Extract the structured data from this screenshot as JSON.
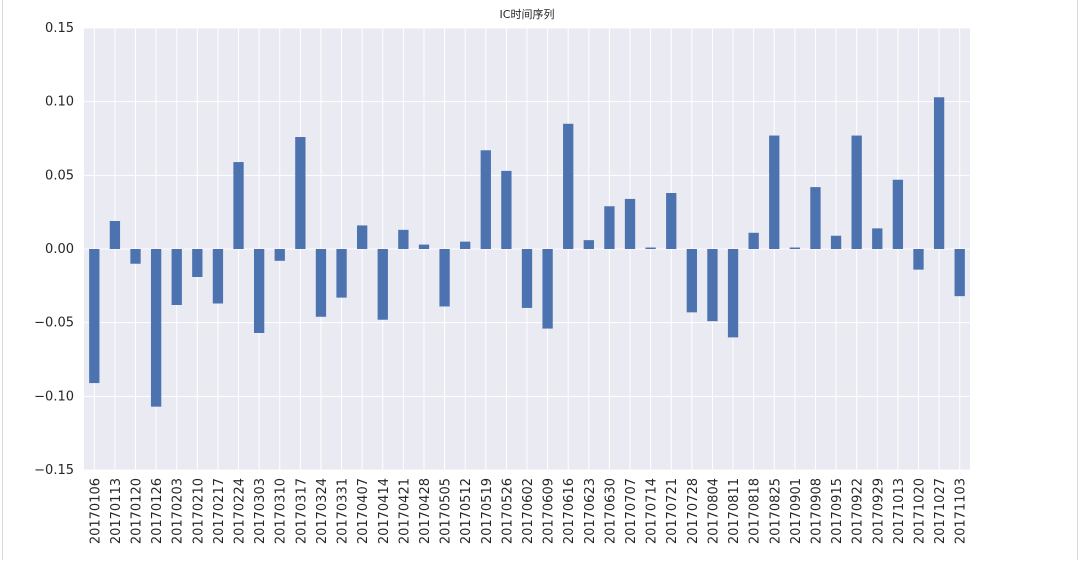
{
  "chart_data": {
    "type": "bar",
    "title": "IC时间序列",
    "xlabel": "",
    "ylabel": "",
    "ylim": [
      -0.15,
      0.15
    ],
    "yticks": [
      0.15,
      0.1,
      0.05,
      0.0,
      -0.05,
      -0.1,
      -0.15
    ],
    "ytick_labels": [
      "0.15",
      "0.10",
      "0.05",
      "0.00",
      "−0.05",
      "−0.10",
      "−0.15"
    ],
    "grid": true,
    "bar_color": "#4c72b0",
    "background_color": "#eaeaf2",
    "categories": [
      "20170106",
      "20170113",
      "20170120",
      "20170126",
      "20170203",
      "20170210",
      "20170217",
      "20170224",
      "20170303",
      "20170310",
      "20170317",
      "20170324",
      "20170331",
      "20170407",
      "20170414",
      "20170421",
      "20170428",
      "20170505",
      "20170512",
      "20170519",
      "20170526",
      "20170602",
      "20170609",
      "20170616",
      "20170623",
      "20170630",
      "20170707",
      "20170714",
      "20170721",
      "20170728",
      "20170804",
      "20170811",
      "20170818",
      "20170825",
      "20170901",
      "20170908",
      "20170915",
      "20170922",
      "20170929",
      "20171013",
      "20171020",
      "20171027",
      "20171103"
    ],
    "values": [
      -0.091,
      0.019,
      -0.01,
      -0.107,
      -0.038,
      -0.019,
      -0.037,
      0.059,
      -0.057,
      -0.008,
      0.076,
      -0.046,
      -0.033,
      0.016,
      -0.048,
      0.013,
      0.003,
      -0.039,
      0.005,
      0.067,
      0.053,
      -0.04,
      -0.054,
      0.085,
      0.006,
      0.029,
      0.034,
      0.001,
      0.038,
      -0.043,
      -0.049,
      -0.06,
      0.011,
      0.077,
      0.001,
      0.042,
      0.009,
      0.077,
      0.014,
      0.047,
      -0.014,
      0.103,
      -0.032
    ]
  }
}
